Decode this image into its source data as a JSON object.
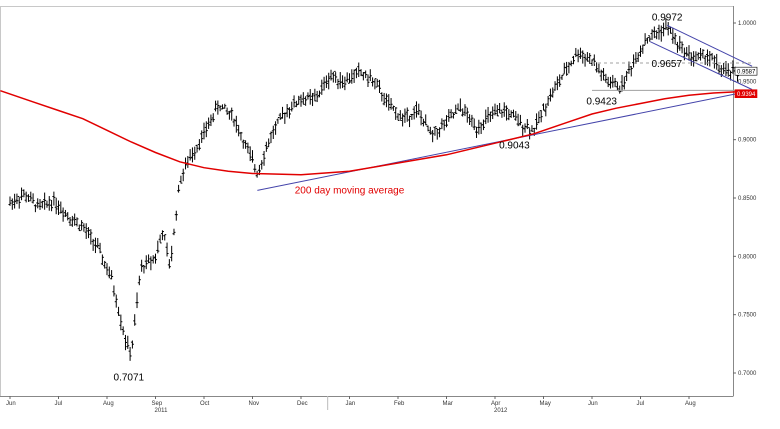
{
  "colors": {
    "background": "#ffffff",
    "bars": "#000000",
    "moving_average": "#e10000",
    "trendline": "#4444aa",
    "ref_line": "#a0a0a0",
    "current_tag_bg": "#ffffff",
    "ma_tag_bg": "#e10000"
  },
  "chart_data": {
    "type": "ohlc-bar",
    "title": "",
    "xlabel": "",
    "ylabel": "",
    "ylim": [
      0.69,
      1.01
    ],
    "x_months": [
      "Jun",
      "Jul",
      "Aug",
      "Sep",
      "Oct",
      "Nov",
      "Dec",
      "Jan",
      "Feb",
      "Mar",
      "Apr",
      "May",
      "Jun",
      "Jul",
      "Aug"
    ],
    "x_years": [
      {
        "label": "2011",
        "month_index": 3
      },
      {
        "label": "2012",
        "month_index": 10
      }
    ],
    "y_ticks": [
      "1.0000",
      "0.9500",
      "0.9000",
      "0.8500",
      "0.8000",
      "0.7500",
      "0.7000"
    ],
    "y_tick_values": [
      1.0,
      0.95,
      0.9,
      0.85,
      0.8,
      0.75,
      0.7
    ],
    "price_anchors": [
      {
        "m": 0.0,
        "v": 0.846
      },
      {
        "m": 0.3,
        "v": 0.853
      },
      {
        "m": 0.6,
        "v": 0.842
      },
      {
        "m": 0.9,
        "v": 0.848
      },
      {
        "m": 1.2,
        "v": 0.835
      },
      {
        "m": 1.5,
        "v": 0.825
      },
      {
        "m": 1.8,
        "v": 0.808
      },
      {
        "m": 2.1,
        "v": 0.78
      },
      {
        "m": 2.4,
        "v": 0.725
      },
      {
        "m": 2.5,
        "v": 0.716
      },
      {
        "m": 2.7,
        "v": 0.79
      },
      {
        "m": 3.0,
        "v": 0.8
      },
      {
        "m": 3.15,
        "v": 0.822
      },
      {
        "m": 3.3,
        "v": 0.79
      },
      {
        "m": 3.5,
        "v": 0.865
      },
      {
        "m": 3.7,
        "v": 0.884
      },
      {
        "m": 4.0,
        "v": 0.905
      },
      {
        "m": 4.3,
        "v": 0.93
      },
      {
        "m": 4.6,
        "v": 0.92
      },
      {
        "m": 4.8,
        "v": 0.9
      },
      {
        "m": 5.1,
        "v": 0.872
      },
      {
        "m": 5.4,
        "v": 0.905
      },
      {
        "m": 5.7,
        "v": 0.925
      },
      {
        "m": 6.0,
        "v": 0.935
      },
      {
        "m": 6.3,
        "v": 0.935
      },
      {
        "m": 6.6,
        "v": 0.955
      },
      {
        "m": 6.9,
        "v": 0.95
      },
      {
        "m": 7.2,
        "v": 0.958
      },
      {
        "m": 7.5,
        "v": 0.95
      },
      {
        "m": 7.8,
        "v": 0.93
      },
      {
        "m": 8.1,
        "v": 0.918
      },
      {
        "m": 8.4,
        "v": 0.925
      },
      {
        "m": 8.7,
        "v": 0.903
      },
      {
        "m": 9.0,
        "v": 0.915
      },
      {
        "m": 9.3,
        "v": 0.928
      },
      {
        "m": 9.6,
        "v": 0.91
      },
      {
        "m": 9.9,
        "v": 0.92
      },
      {
        "m": 10.2,
        "v": 0.925
      },
      {
        "m": 10.5,
        "v": 0.915
      },
      {
        "m": 10.8,
        "v": 0.908
      },
      {
        "m": 11.1,
        "v": 0.935
      },
      {
        "m": 11.4,
        "v": 0.955
      },
      {
        "m": 11.7,
        "v": 0.975
      },
      {
        "m": 12.0,
        "v": 0.968
      },
      {
        "m": 12.3,
        "v": 0.95
      },
      {
        "m": 12.6,
        "v": 0.945
      },
      {
        "m": 12.8,
        "v": 0.962
      },
      {
        "m": 13.1,
        "v": 0.985
      },
      {
        "m": 13.4,
        "v": 0.993
      },
      {
        "m": 13.55,
        "v": 0.997
      },
      {
        "m": 13.8,
        "v": 0.98
      },
      {
        "m": 14.1,
        "v": 0.97
      },
      {
        "m": 14.4,
        "v": 0.972
      },
      {
        "m": 14.7,
        "v": 0.958
      },
      {
        "m": 15.0,
        "v": 0.958
      }
    ],
    "moving_average": {
      "name": "200 day moving average",
      "points": [
        {
          "m": -0.2,
          "v": 0.942
        },
        {
          "m": 0.5,
          "v": 0.932
        },
        {
          "m": 1.0,
          "v": 0.925
        },
        {
          "m": 1.5,
          "v": 0.918
        },
        {
          "m": 2.0,
          "v": 0.908
        },
        {
          "m": 2.5,
          "v": 0.898
        },
        {
          "m": 3.0,
          "v": 0.889
        },
        {
          "m": 3.5,
          "v": 0.881
        },
        {
          "m": 4.0,
          "v": 0.876
        },
        {
          "m": 4.5,
          "v": 0.873
        },
        {
          "m": 5.0,
          "v": 0.871
        },
        {
          "m": 6.0,
          "v": 0.87
        },
        {
          "m": 7.0,
          "v": 0.873
        },
        {
          "m": 8.0,
          "v": 0.88
        },
        {
          "m": 9.0,
          "v": 0.887
        },
        {
          "m": 10.0,
          "v": 0.897
        },
        {
          "m": 10.8,
          "v": 0.905
        },
        {
          "m": 11.5,
          "v": 0.915
        },
        {
          "m": 12.0,
          "v": 0.922
        },
        {
          "m": 12.5,
          "v": 0.927
        },
        {
          "m": 13.0,
          "v": 0.931
        },
        {
          "m": 13.5,
          "v": 0.935
        },
        {
          "m": 14.0,
          "v": 0.938
        },
        {
          "m": 14.5,
          "v": 0.94
        },
        {
          "m": 15.0,
          "v": 0.941
        }
      ]
    },
    "lines": [
      {
        "name": "uptrend",
        "from": {
          "m": 5.1,
          "v": 0.8565
        },
        "to": {
          "m": 15.3,
          "v": 0.942
        }
      },
      {
        "name": "channel-top",
        "from": {
          "m": 13.55,
          "v": 0.998
        },
        "to": {
          "m": 15.3,
          "v": 0.963
        }
      },
      {
        "name": "channel-bottom",
        "from": {
          "m": 13.2,
          "v": 0.984
        },
        "to": {
          "m": 15.3,
          "v": 0.943
        }
      },
      {
        "name": "support-0.9423",
        "from": {
          "m": 12.0,
          "v": 0.9423
        },
        "to": {
          "m": 15.3,
          "v": 0.9423
        }
      },
      {
        "name": "level-0.9657",
        "from": {
          "m": 12.0,
          "v": 0.9657
        },
        "to": {
          "m": 15.3,
          "v": 0.9657
        }
      }
    ],
    "annotations": [
      {
        "text": "0.7071",
        "m": 2.45,
        "v": 0.7071
      },
      {
        "text": "0.9043",
        "m": 10.4,
        "v": 0.9043
      },
      {
        "text": "0.9423",
        "m": 12.2,
        "v": 0.9423
      },
      {
        "text": "0.9657",
        "m": 13.5,
        "v": 0.9657
      },
      {
        "text": "0.9972",
        "m": 13.55,
        "v": 0.9972
      },
      {
        "text": "200 day moving average",
        "m": 7.0,
        "v": 0.864
      }
    ],
    "last_value_tags": [
      {
        "text": "0.9587",
        "v": 0.9587
      },
      {
        "text": "0.9394",
        "v": 0.9394
      }
    ]
  }
}
